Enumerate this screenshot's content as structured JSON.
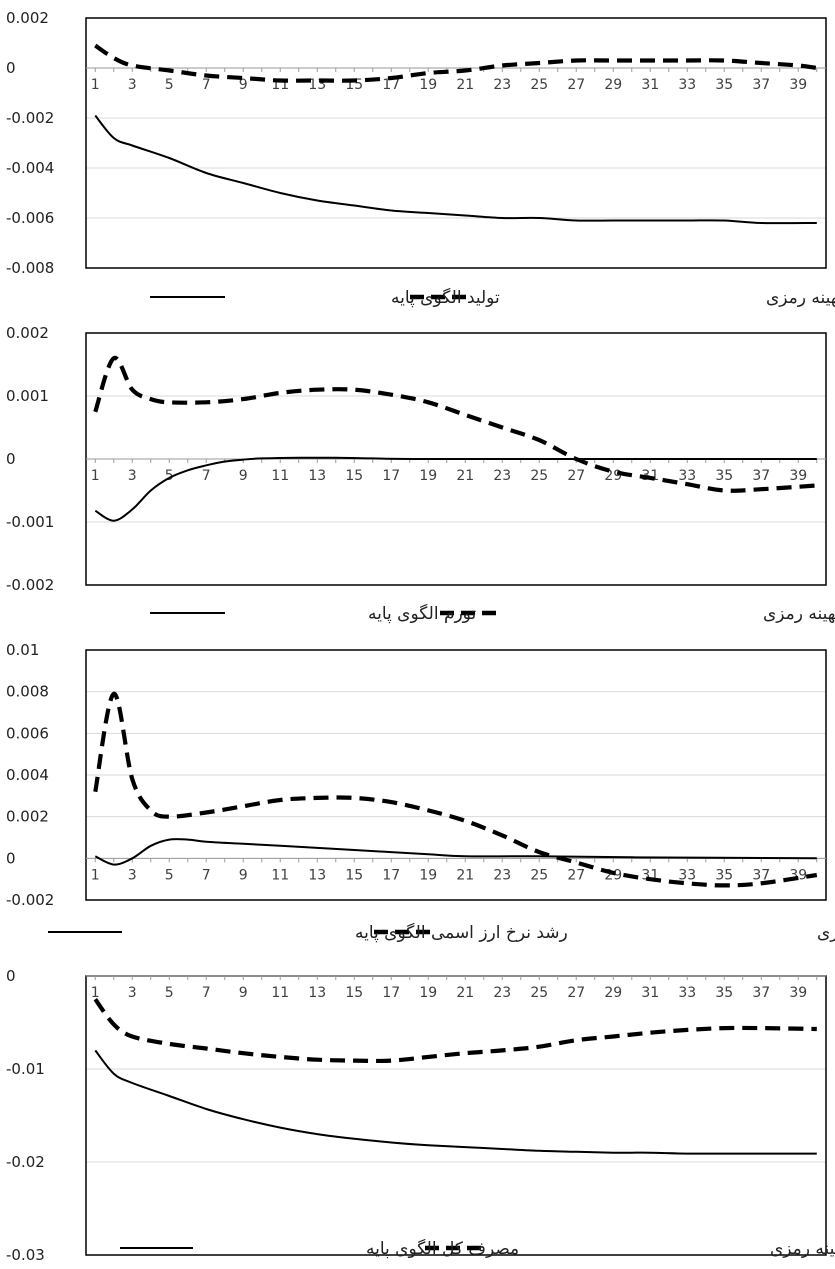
{
  "chart_data": [
    {
      "type": "line",
      "title": "",
      "xlabel": "",
      "ylabel": "",
      "x_ticks": [
        "1",
        "3",
        "5",
        "7",
        "9",
        "11",
        "13",
        "15",
        "17",
        "19",
        "21",
        "23",
        "25",
        "27",
        "29",
        "31",
        "33",
        "35",
        "37",
        "39"
      ],
      "y_ticks": [
        "0.002",
        "0",
        "-0.002",
        "-0.004",
        "-0.006",
        "-0.008"
      ],
      "ylim": [
        -0.008,
        0.002
      ],
      "grid": true,
      "legend_position": "bottom",
      "series": [
        {
          "name": "تولید با سیاست بهینه رمزی",
          "style": "dashed",
          "points": [
            [
              1,
              0.0009
            ],
            [
              2,
              0.0004
            ],
            [
              3,
              0.0001
            ],
            [
              5,
              -0.0001
            ],
            [
              7,
              -0.0003
            ],
            [
              9,
              -0.0004
            ],
            [
              11,
              -0.0005
            ],
            [
              13,
              -0.0005
            ],
            [
              15,
              -0.0005
            ],
            [
              17,
              -0.0004
            ],
            [
              19,
              -0.0002
            ],
            [
              21,
              -0.0001
            ],
            [
              23,
              0.0001
            ],
            [
              25,
              0.0002
            ],
            [
              27,
              0.0003
            ],
            [
              29,
              0.0003
            ],
            [
              31,
              0.0003
            ],
            [
              33,
              0.0003
            ],
            [
              35,
              0.0003
            ],
            [
              37,
              0.0002
            ],
            [
              39,
              0.0001
            ],
            [
              40,
              0.0
            ]
          ]
        },
        {
          "name": "تولید الگوی پایه",
          "style": "solid",
          "points": [
            [
              1,
              -0.0019
            ],
            [
              2,
              -0.0028
            ],
            [
              3,
              -0.0031
            ],
            [
              5,
              -0.0036
            ],
            [
              7,
              -0.0042
            ],
            [
              9,
              -0.0046
            ],
            [
              11,
              -0.005
            ],
            [
              13,
              -0.0053
            ],
            [
              15,
              -0.0055
            ],
            [
              17,
              -0.0057
            ],
            [
              19,
              -0.0058
            ],
            [
              21,
              -0.0059
            ],
            [
              23,
              -0.006
            ],
            [
              25,
              -0.006
            ],
            [
              27,
              -0.0061
            ],
            [
              29,
              -0.0061
            ],
            [
              31,
              -0.0061
            ],
            [
              33,
              -0.0061
            ],
            [
              35,
              -0.0061
            ],
            [
              37,
              -0.0062
            ],
            [
              40,
              -0.0062
            ]
          ]
        }
      ]
    },
    {
      "type": "line",
      "title": "",
      "xlabel": "",
      "ylabel": "",
      "x_ticks": [
        "1",
        "3",
        "5",
        "7",
        "9",
        "11",
        "13",
        "15",
        "17",
        "19",
        "21",
        "23",
        "25",
        "27",
        "29",
        "31",
        "33",
        "35",
        "37",
        "39"
      ],
      "y_ticks": [
        "0.002",
        "0.001",
        "0",
        "-0.001",
        "-0.002"
      ],
      "ylim": [
        -0.002,
        0.002
      ],
      "grid": true,
      "legend_position": "bottom",
      "series": [
        {
          "name": "تورم با سیاست بهینه رمزی",
          "style": "dashed",
          "points": [
            [
              1,
              0.00075
            ],
            [
              2,
              0.0016
            ],
            [
              3,
              0.0011
            ],
            [
              4,
              0.00095
            ],
            [
              5,
              0.0009
            ],
            [
              7,
              0.0009
            ],
            [
              9,
              0.00095
            ],
            [
              11,
              0.00105
            ],
            [
              13,
              0.0011
            ],
            [
              15,
              0.0011
            ],
            [
              17,
              0.00102
            ],
            [
              19,
              0.0009
            ],
            [
              21,
              0.0007
            ],
            [
              23,
              0.0005
            ],
            [
              25,
              0.0003
            ],
            [
              27,
              0.0
            ],
            [
              29,
              -0.0002
            ],
            [
              31,
              -0.0003
            ],
            [
              33,
              -0.0004
            ],
            [
              35,
              -0.0005
            ],
            [
              37,
              -0.00048
            ],
            [
              40,
              -0.00042
            ]
          ]
        },
        {
          "name": "تورم الگوی پایه",
          "style": "solid",
          "points": [
            [
              1,
              -0.00082
            ],
            [
              2,
              -0.00098
            ],
            [
              3,
              -0.0008
            ],
            [
              4,
              -0.0005
            ],
            [
              5,
              -0.0003
            ],
            [
              6,
              -0.00018
            ],
            [
              7,
              -0.0001
            ],
            [
              8,
              -4e-05
            ],
            [
              9,
              -1e-05
            ],
            [
              10,
              1e-05
            ],
            [
              12,
              2e-05
            ],
            [
              14,
              2e-05
            ],
            [
              16,
              1e-05
            ],
            [
              20,
              0.0
            ],
            [
              40,
              0.0
            ]
          ]
        }
      ]
    },
    {
      "type": "line",
      "title": "",
      "xlabel": "",
      "ylabel": "",
      "x_ticks": [
        "1",
        "3",
        "5",
        "7",
        "9",
        "11",
        "13",
        "15",
        "17",
        "19",
        "21",
        "23",
        "25",
        "27",
        "29",
        "31",
        "33",
        "35",
        "37",
        "39"
      ],
      "y_ticks": [
        "0.01",
        "0.008",
        "0.006",
        "0.004",
        "0.002",
        "0",
        "-0.002"
      ],
      "ylim": [
        -0.002,
        0.01
      ],
      "grid": true,
      "legend_position": "bottom",
      "series": [
        {
          "name": "رشد نرخ ارز اسمی با سیاست بهینه رمزی",
          "style": "dashed",
          "points": [
            [
              1,
              0.0032
            ],
            [
              2,
              0.0079
            ],
            [
              3,
              0.0038
            ],
            [
              4,
              0.0023
            ],
            [
              5,
              0.002
            ],
            [
              7,
              0.0022
            ],
            [
              9,
              0.0025
            ],
            [
              11,
              0.0028
            ],
            [
              13,
              0.0029
            ],
            [
              15,
              0.0029
            ],
            [
              17,
              0.0027
            ],
            [
              19,
              0.0023
            ],
            [
              21,
              0.0018
            ],
            [
              23,
              0.0011
            ],
            [
              25,
              0.0003
            ],
            [
              27,
              -0.0002
            ],
            [
              29,
              -0.0007
            ],
            [
              31,
              -0.001
            ],
            [
              33,
              -0.0012
            ],
            [
              35,
              -0.0013
            ],
            [
              37,
              -0.0012
            ],
            [
              40,
              -0.0008
            ]
          ]
        },
        {
          "name": "رشد نرخ ارز اسمی الگوی پایه",
          "style": "solid",
          "points": [
            [
              1,
              0.0001
            ],
            [
              2,
              -0.0003
            ],
            [
              3,
              0.0
            ],
            [
              4,
              0.0006
            ],
            [
              5,
              0.0009
            ],
            [
              6,
              0.0009
            ],
            [
              7,
              0.0008
            ],
            [
              9,
              0.0007
            ],
            [
              11,
              0.0006
            ],
            [
              13,
              0.0005
            ],
            [
              15,
              0.0004
            ],
            [
              17,
              0.0003
            ],
            [
              19,
              0.0002
            ],
            [
              21,
              0.0001
            ],
            [
              25,
              0.0001
            ],
            [
              30,
              5e-05
            ],
            [
              40,
              0.0
            ]
          ]
        }
      ]
    },
    {
      "type": "line",
      "title": "",
      "xlabel": "",
      "ylabel": "",
      "x_ticks": [
        "1",
        "3",
        "5",
        "7",
        "9",
        "11",
        "13",
        "15",
        "17",
        "19",
        "21",
        "23",
        "25",
        "27",
        "29",
        "31",
        "33",
        "35",
        "37",
        "39"
      ],
      "y_ticks": [
        "0",
        "-0.01",
        "-0.02",
        "-0.03"
      ],
      "ylim": [
        -0.03,
        0.0
      ],
      "grid": true,
      "legend_position": "bottom",
      "series": [
        {
          "name": "مصرف کل با سیاست بهینه رمزی",
          "style": "dashed",
          "points": [
            [
              1,
              -0.0025
            ],
            [
              2,
              -0.0052
            ],
            [
              3,
              -0.0065
            ],
            [
              5,
              -0.0073
            ],
            [
              7,
              -0.0078
            ],
            [
              9,
              -0.0083
            ],
            [
              11,
              -0.0087
            ],
            [
              13,
              -0.009
            ],
            [
              15,
              -0.0091
            ],
            [
              17,
              -0.0091
            ],
            [
              19,
              -0.0087
            ],
            [
              21,
              -0.0083
            ],
            [
              23,
              -0.008
            ],
            [
              25,
              -0.0076
            ],
            [
              27,
              -0.0069
            ],
            [
              29,
              -0.0065
            ],
            [
              31,
              -0.0061
            ],
            [
              33,
              -0.0058
            ],
            [
              35,
              -0.0056
            ],
            [
              37,
              -0.0056
            ],
            [
              40,
              -0.0057
            ]
          ]
        },
        {
          "name": "مصرف کل الگوی پایه",
          "style": "solid",
          "points": [
            [
              1,
              -0.008
            ],
            [
              2,
              -0.0105
            ],
            [
              3,
              -0.0115
            ],
            [
              5,
              -0.0129
            ],
            [
              7,
              -0.0143
            ],
            [
              9,
              -0.0154
            ],
            [
              11,
              -0.0163
            ],
            [
              13,
              -0.017
            ],
            [
              15,
              -0.0175
            ],
            [
              17,
              -0.0179
            ],
            [
              19,
              -0.0182
            ],
            [
              21,
              -0.0184
            ],
            [
              23,
              -0.0186
            ],
            [
              25,
              -0.0188
            ],
            [
              27,
              -0.0189
            ],
            [
              29,
              -0.019
            ],
            [
              31,
              -0.019
            ],
            [
              33,
              -0.0191
            ],
            [
              35,
              -0.0191
            ],
            [
              37,
              -0.0191
            ],
            [
              40,
              -0.0191
            ]
          ]
        }
      ]
    }
  ]
}
